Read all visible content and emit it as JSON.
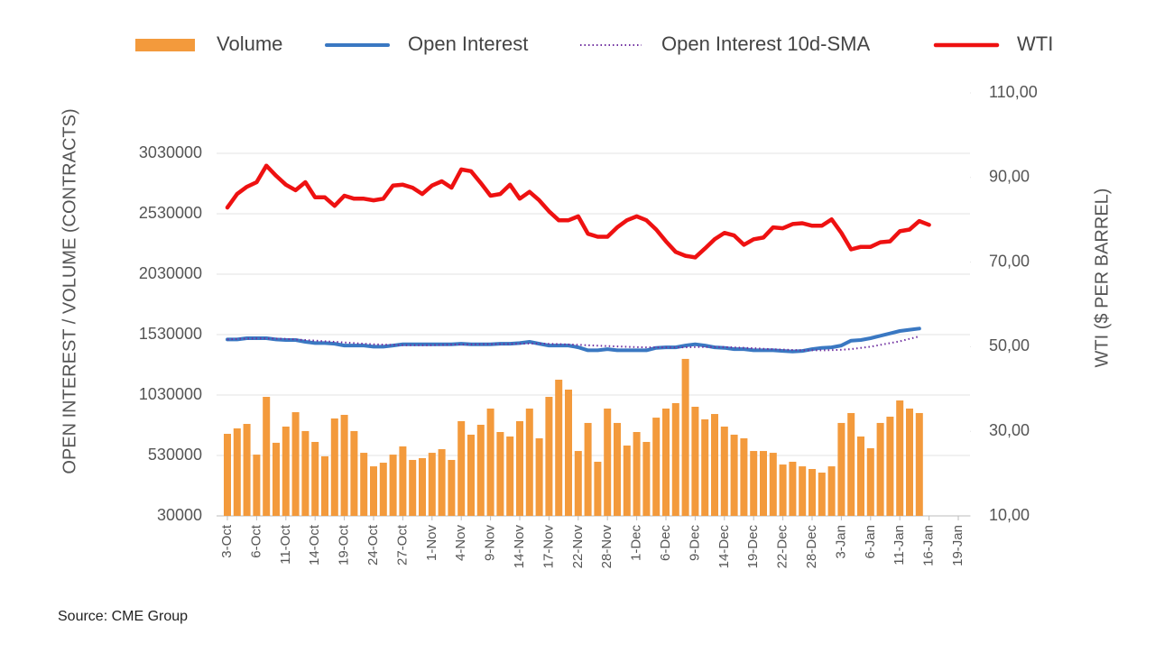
{
  "chart_data": {
    "type": "combo",
    "source": "Source: CME Group",
    "ylabel": "OPEN INTEREST / VOLUME (CONTRACTS)",
    "y2label": "WTI ($ PER BARREL)",
    "ylim": [
      30000,
      3530000
    ],
    "yticks": [
      30000,
      530000,
      1030000,
      1530000,
      2030000,
      2530000,
      3030000
    ],
    "y2lim": [
      10,
      110
    ],
    "y2ticks": [
      {
        "value": 10,
        "label": "10,00"
      },
      {
        "value": 30,
        "label": "30,00"
      },
      {
        "value": 50,
        "label": "50,00"
      },
      {
        "value": 70,
        "label": "70,00"
      },
      {
        "value": 90,
        "label": "90,00"
      },
      {
        "value": 110,
        "label": "110,00"
      }
    ],
    "grid": true,
    "legend": "top",
    "categories": [
      "3-Oct",
      null,
      null,
      "6-Oct",
      null,
      null,
      "11-Oct",
      null,
      null,
      "14-Oct",
      null,
      null,
      "19-Oct",
      null,
      null,
      "24-Oct",
      null,
      null,
      "27-Oct",
      null,
      null,
      "1-Nov",
      null,
      null,
      "4-Nov",
      null,
      null,
      "9-Nov",
      null,
      null,
      "14-Nov",
      null,
      null,
      "17-Nov",
      null,
      null,
      "22-Nov",
      null,
      null,
      "28-Nov",
      null,
      null,
      "1-Dec",
      null,
      null,
      "6-Dec",
      null,
      null,
      "9-Dec",
      null,
      null,
      "14-Dec",
      null,
      null,
      "19-Dec",
      null,
      null,
      "22-Dec",
      null,
      null,
      "28-Dec",
      null,
      null,
      "3-Jan",
      null,
      null,
      "6-Jan",
      null,
      null,
      "11-Jan",
      null,
      null,
      "16-Jan",
      null,
      null,
      "19-Jan"
    ],
    "series": [
      {
        "name": "Volume",
        "kind": "bar",
        "color": "#f39a3c",
        "values": [
          709000,
          754000,
          791000,
          537000,
          1015000,
          635000,
          769000,
          888000,
          732000,
          642000,
          523000,
          836000,
          866000,
          732000,
          552000,
          440000,
          470000,
          537000,
          605000,
          493000,
          508000,
          552000,
          582000,
          493000,
          814000,
          702000,
          784000,
          918000,
          724000,
          687000,
          814000,
          918000,
          672000,
          1015000,
          1157000,
          1075000,
          567000,
          799000,
          478000,
          918000,
          799000,
          612000,
          724000,
          642000,
          843000,
          918000,
          963000,
          1329000,
          933000,
          829000,
          873000,
          769000,
          702000,
          672000,
          567000,
          567000,
          552000,
          455000,
          478000,
          440000,
          418000,
          388000,
          440000,
          799000,
          881000,
          687000,
          590000,
          799000,
          851000,
          985000,
          918000,
          881000,
          null,
          null,
          null,
          null
        ]
      },
      {
        "name": "Open Interest",
        "kind": "line",
        "style": "solid",
        "width": 4,
        "color": "#3a78c2",
        "values": [
          1490000,
          1490000,
          1500000,
          1500000,
          1500000,
          1490000,
          1485000,
          1485000,
          1470000,
          1460000,
          1460000,
          1455000,
          1440000,
          1440000,
          1440000,
          1430000,
          1430000,
          1440000,
          1450000,
          1450000,
          1450000,
          1450000,
          1450000,
          1450000,
          1455000,
          1450000,
          1450000,
          1450000,
          1455000,
          1455000,
          1460000,
          1470000,
          1455000,
          1440000,
          1440000,
          1440000,
          1425000,
          1400000,
          1400000,
          1410000,
          1400000,
          1400000,
          1400000,
          1400000,
          1420000,
          1425000,
          1425000,
          1440000,
          1450000,
          1440000,
          1425000,
          1420000,
          1410000,
          1410000,
          1400000,
          1400000,
          1400000,
          1395000,
          1390000,
          1395000,
          1410000,
          1420000,
          1425000,
          1440000,
          1480000,
          1485000,
          1500000,
          1520000,
          1540000,
          1560000,
          1570000,
          1580000,
          null,
          null,
          null,
          null
        ]
      },
      {
        "name": "Open Interest 10d-SMA",
        "kind": "line",
        "style": "dotted",
        "width": 2,
        "color": "#7030a0",
        "values": [
          1490000,
          1495000,
          1497000,
          1498000,
          1498000,
          1497000,
          1495000,
          1490000,
          1485000,
          1480000,
          1475000,
          1470000,
          1465000,
          1460000,
          1455000,
          1450000,
          1447000,
          1445000,
          1443000,
          1442000,
          1442000,
          1443000,
          1445000,
          1447000,
          1448000,
          1449000,
          1450000,
          1451000,
          1452000,
          1453000,
          1455000,
          1456000,
          1456000,
          1454000,
          1452000,
          1449000,
          1446000,
          1442000,
          1438000,
          1435000,
          1432000,
          1429000,
          1427000,
          1425000,
          1425000,
          1424000,
          1424000,
          1425000,
          1427000,
          1428000,
          1428000,
          1427000,
          1424000,
          1421000,
          1417000,
          1413000,
          1409000,
          1406000,
          1403000,
          1400000,
          1400000,
          1400000,
          1402000,
          1405000,
          1410000,
          1420000,
          1430000,
          1445000,
          1460000,
          1475000,
          1495000,
          1515000,
          null,
          null,
          null,
          null
        ]
      },
      {
        "name": "WTI",
        "kind": "line",
        "style": "solid",
        "width": 4.5,
        "axis": "y2",
        "color": "#ee1111",
        "values": [
          82.9,
          86.1,
          87.8,
          88.9,
          92.8,
          90.4,
          88.3,
          87,
          88.9,
          85.3,
          85.3,
          83.3,
          85.7,
          85,
          85,
          84.6,
          85,
          88.1,
          88.3,
          87.6,
          86.1,
          88.1,
          89.1,
          87.6,
          91.9,
          91.5,
          88.7,
          85.7,
          86.1,
          88.3,
          85,
          86.6,
          84.6,
          82,
          79.9,
          79.9,
          80.8,
          76.7,
          76,
          76,
          78.2,
          79.9,
          80.8,
          79.9,
          77.7,
          74.9,
          72.4,
          71.5,
          71.1,
          73.2,
          75.4,
          76.9,
          76.3,
          74.1,
          75.4,
          75.8,
          78.2,
          78,
          79,
          79.2,
          78.6,
          78.6,
          80.1,
          76.9,
          73,
          73.6,
          73.6,
          74.7,
          74.9,
          77.3,
          77.7,
          79.7,
          78.8,
          null,
          null,
          null
        ]
      }
    ]
  }
}
